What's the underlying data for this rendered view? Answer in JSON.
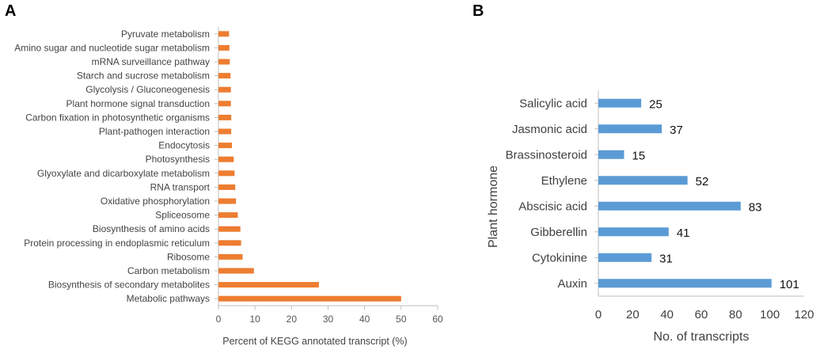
{
  "panels": {
    "a_label": "A",
    "b_label": "B"
  },
  "chart_data": [
    {
      "type": "bar",
      "orientation": "horizontal",
      "panel": "A",
      "title": "",
      "xlabel": "Percent of KEGG annotated transcript (%)",
      "ylabel": "",
      "xlim": [
        0,
        60
      ],
      "xticks": [
        0,
        10,
        20,
        30,
        40,
        50,
        60
      ],
      "grid": false,
      "bar_color": "#ED7D31",
      "categories": [
        "Pyruvate metabolism",
        "Amino sugar and nucleotide sugar metabolism",
        "mRNA surveillance pathway",
        "Starch and sucrose metabolism",
        "Glycolysis / Gluconeogenesis",
        "Plant hormone signal transduction",
        "Carbon fixation in photosynthetic organisms",
        "Plant-pathogen interaction",
        "Endocytosis",
        "Photosynthesis",
        "Glyoxylate and dicarboxylate metabolism",
        "RNA transport",
        "Oxidative phosphorylation",
        "Spliceosome",
        "Biosynthesis of amino acids",
        "Protein processing in endoplasmic reticulum",
        "Ribosome",
        "Carbon metabolism",
        "Biosynthesis of secondary metabolites",
        "Metabolic pathways"
      ],
      "values": [
        2.9,
        3.0,
        3.1,
        3.3,
        3.4,
        3.4,
        3.5,
        3.5,
        3.7,
        4.2,
        4.4,
        4.6,
        4.8,
        5.3,
        6.0,
        6.2,
        6.6,
        9.7,
        27.5,
        50.0
      ]
    },
    {
      "type": "bar",
      "orientation": "horizontal",
      "panel": "B",
      "title": "",
      "xlabel": "No. of transcripts",
      "ylabel": "Plant hormone",
      "xlim": [
        0,
        120
      ],
      "xticks": [
        0,
        20,
        40,
        60,
        80,
        100,
        120
      ],
      "grid": false,
      "bar_color": "#5B9BD5",
      "categories": [
        "Salicylic acid",
        "Jasmonic acid",
        "Brassinosteroid",
        "Ethylene",
        "Abscisic acid",
        "Gibberellin",
        "Cytokinine",
        "Auxin"
      ],
      "values": [
        25,
        37,
        15,
        52,
        83,
        41,
        31,
        101
      ],
      "data_labels": [
        "25",
        "37",
        "15",
        "52",
        "83",
        "41",
        "31",
        "101"
      ]
    }
  ]
}
